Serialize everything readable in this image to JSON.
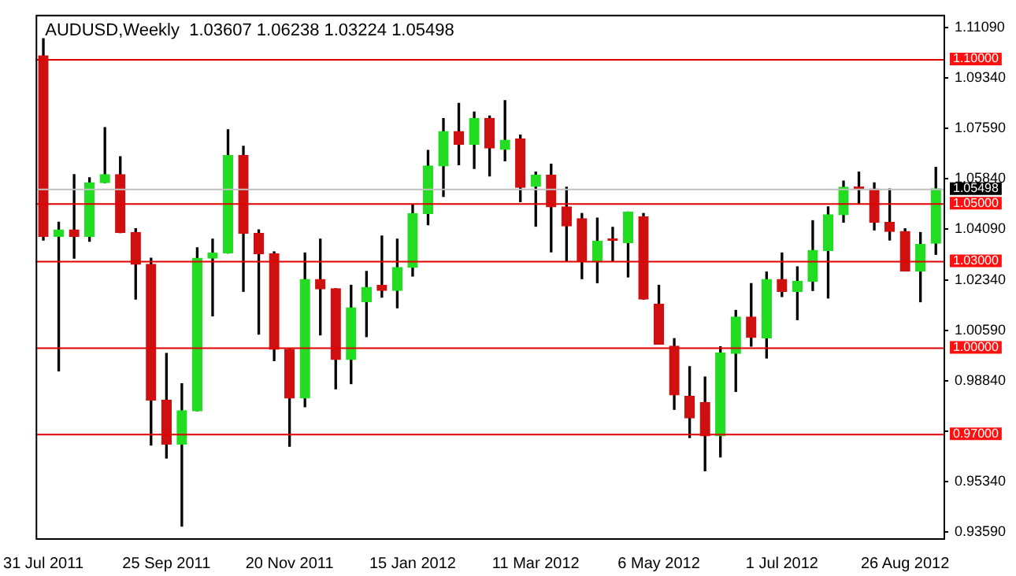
{
  "chart_data": {
    "type": "candlestick",
    "title": "AUDUSD,Weekly  1.03607 1.06238 1.03224 1.05498",
    "categories": [
      "31 Jul 2011",
      null,
      null,
      null,
      null,
      null,
      null,
      null,
      "25 Sep 2011",
      null,
      null,
      null,
      null,
      null,
      null,
      null,
      "20 Nov 2011",
      null,
      null,
      null,
      null,
      null,
      null,
      null,
      "15 Jan 2012",
      null,
      null,
      null,
      null,
      null,
      null,
      null,
      "11 Mar 2012",
      null,
      null,
      null,
      null,
      null,
      null,
      null,
      "6 May 2012",
      null,
      null,
      null,
      null,
      null,
      null,
      null,
      "1 Jul 2012",
      null,
      null,
      null,
      null,
      null,
      null,
      null,
      "26 Aug 2012",
      null,
      null
    ],
    "ohlc": [
      [
        1.1011,
        1.107,
        1.0372,
        1.0384
      ],
      [
        1.0384,
        1.0434,
        0.9918,
        1.0407
      ],
      [
        1.0407,
        1.0599,
        1.0309,
        1.0384
      ],
      [
        1.0384,
        1.0588,
        1.0368,
        1.0571
      ],
      [
        1.0571,
        1.0762,
        1.0571,
        1.0599
      ],
      [
        1.0599,
        1.0661,
        1.0398,
        1.0398
      ],
      [
        1.0398,
        1.0411,
        1.0167,
        1.0288
      ],
      [
        1.0288,
        1.0309,
        0.9661,
        0.9817
      ],
      [
        0.9817,
        0.9979,
        0.9616,
        0.9664
      ],
      [
        0.9664,
        0.9874,
        0.938,
        0.978
      ],
      [
        0.978,
        1.0345,
        0.978,
        1.0309
      ],
      [
        1.0309,
        1.0375,
        1.0109,
        1.0327
      ],
      [
        1.0327,
        1.0754,
        1.0327,
        1.0665
      ],
      [
        1.0665,
        1.0697,
        1.0194,
        1.0395
      ],
      [
        1.0395,
        1.0407,
        1.0046,
        1.0324
      ],
      [
        1.0324,
        1.0331,
        0.9954,
        0.9993
      ],
      [
        0.9993,
        0.9993,
        0.9657,
        0.9824
      ],
      [
        0.9824,
        1.0327,
        0.9794,
        1.0235
      ],
      [
        1.0235,
        1.0375,
        1.0043,
        1.0203
      ],
      [
        1.0203,
        1.0203,
        0.9856,
        0.9958
      ],
      [
        0.9958,
        1.0215,
        0.9874,
        1.0137
      ],
      [
        1.0158,
        1.0263,
        1.0037,
        1.0208
      ],
      [
        1.0215,
        1.0386,
        1.0174,
        1.0197
      ],
      [
        1.0197,
        1.0375,
        1.0137,
        1.0277
      ],
      [
        1.0277,
        1.0496,
        1.0247,
        1.0464
      ],
      [
        1.0464,
        1.0683,
        1.0425,
        1.0629
      ],
      [
        1.0629,
        1.0793,
        1.0523,
        1.0748
      ],
      [
        1.0748,
        1.0846,
        1.0633,
        1.0704
      ],
      [
        1.0704,
        1.0816,
        1.062,
        1.0794
      ],
      [
        1.0794,
        1.0802,
        1.0594,
        1.0691
      ],
      [
        1.0686,
        1.0855,
        1.0647,
        1.0718
      ],
      [
        1.0722,
        1.0736,
        1.0505,
        1.0555
      ],
      [
        1.0558,
        1.0608,
        1.042,
        1.0597
      ],
      [
        1.0597,
        1.0635,
        1.0331,
        1.0487
      ],
      [
        1.0487,
        1.0555,
        1.03,
        1.0421
      ],
      [
        1.0446,
        1.0464,
        1.0238,
        1.03
      ],
      [
        1.0296,
        1.0448,
        1.0224,
        1.0368
      ],
      [
        1.0372,
        1.0416,
        1.03,
        1.0371
      ],
      [
        1.0363,
        1.0469,
        1.0244,
        1.0469
      ],
      [
        1.0452,
        1.0464,
        1.0167,
        1.0167
      ],
      [
        1.0149,
        1.0215,
        1.0011,
        1.0011
      ],
      [
        1.0004,
        1.003,
        0.9785,
        0.9835
      ],
      [
        0.983,
        0.9933,
        0.9687,
        0.9755
      ],
      [
        0.9808,
        0.9897,
        0.9572,
        0.9693
      ],
      [
        0.9693,
        1.0002,
        0.962,
        0.9981
      ],
      [
        0.9979,
        1.0128,
        0.9847,
        1.0105
      ],
      [
        1.0105,
        1.0221,
        1.0004,
        1.0034
      ],
      [
        1.0032,
        1.0261,
        0.9963,
        1.0235
      ],
      [
        1.0235,
        1.0327,
        1.0176,
        1.0194
      ],
      [
        1.0194,
        1.0279,
        1.0096,
        1.0229
      ],
      [
        1.0229,
        1.0439,
        1.0197,
        1.0336
      ],
      [
        1.0336,
        1.0487,
        1.0171,
        1.046
      ],
      [
        1.046,
        1.0576,
        1.0434,
        1.0555
      ],
      [
        1.0553,
        1.0608,
        1.0499,
        1.0551
      ],
      [
        1.0549,
        1.057,
        1.0407,
        1.0434
      ],
      [
        1.0434,
        1.0549,
        1.0372,
        1.0402
      ],
      [
        1.0402,
        1.0411,
        1.0265,
        1.0265
      ],
      [
        1.0265,
        1.0398,
        1.0158,
        1.0357
      ],
      [
        1.03607,
        1.06238,
        1.03224,
        1.05498
      ]
    ],
    "colors": [
      "#d01010",
      "#22dd22",
      "#d01010",
      "#22dd22",
      "#22dd22",
      "#d01010",
      "#d01010",
      "#d01010",
      "#d01010",
      "#22dd22",
      "#22dd22",
      "#22dd22",
      "#22dd22",
      "#d01010",
      "#d01010",
      "#d01010",
      "#d01010",
      "#22dd22",
      "#d01010",
      "#d01010",
      "#22dd22",
      "#22dd22",
      "#d01010",
      "#22dd22",
      "#22dd22",
      "#22dd22",
      "#22dd22",
      "#d01010",
      "#22dd22",
      "#d01010",
      "#22dd22",
      "#d01010",
      "#22dd22",
      "#d01010",
      "#d01010",
      "#d01010",
      "#22dd22",
      "#d01010",
      "#22dd22",
      "#d01010",
      "#d01010",
      "#d01010",
      "#d01010",
      "#d01010",
      "#22dd22",
      "#22dd22",
      "#d01010",
      "#22dd22",
      "#d01010",
      "#22dd22",
      "#22dd22",
      "#22dd22",
      "#22dd22",
      "#d01010",
      "#d01010",
      "#d01010",
      "#d01010",
      "#22dd22",
      "#22dd22"
    ],
    "ylim": [
      0.9338,
      1.1153
    ],
    "yticks": [
      {
        "value": 1.1109,
        "label": "1.11090"
      },
      {
        "value": 1.0934,
        "label": "1.09340"
      },
      {
        "value": 1.0759,
        "label": "1.07590"
      },
      {
        "value": 1.0584,
        "label": "1.05840"
      },
      {
        "value": 1.0409,
        "label": "1.04090"
      },
      {
        "value": 1.0234,
        "label": "1.02340"
      },
      {
        "value": 1.0059,
        "label": "1.00590"
      },
      {
        "value": 0.9884,
        "label": "0.98840"
      },
      {
        "value": 0.9709,
        "label": null
      },
      {
        "value": 0.9534,
        "label": "0.95340"
      },
      {
        "value": 0.9359,
        "label": "0.93590"
      }
    ],
    "ref_lines": [
      {
        "axis": "y",
        "value": 1.1,
        "label": "1.10000",
        "color": "#e00000"
      },
      {
        "axis": "y",
        "value": 1.05,
        "label": "1.05000",
        "color": "#e00000"
      },
      {
        "axis": "y",
        "value": 1.03,
        "label": "1.03000",
        "color": "#e00000"
      },
      {
        "axis": "y",
        "value": 1.0,
        "label": "1.00000",
        "color": "#e00000"
      },
      {
        "axis": "y",
        "value": 0.97,
        "label": "0.97000",
        "color": "#e00000"
      },
      {
        "axis": "y",
        "value": 1.05498,
        "label": "1.05498",
        "color": "#c0c0c0"
      }
    ],
    "grid": false,
    "legend": false
  }
}
